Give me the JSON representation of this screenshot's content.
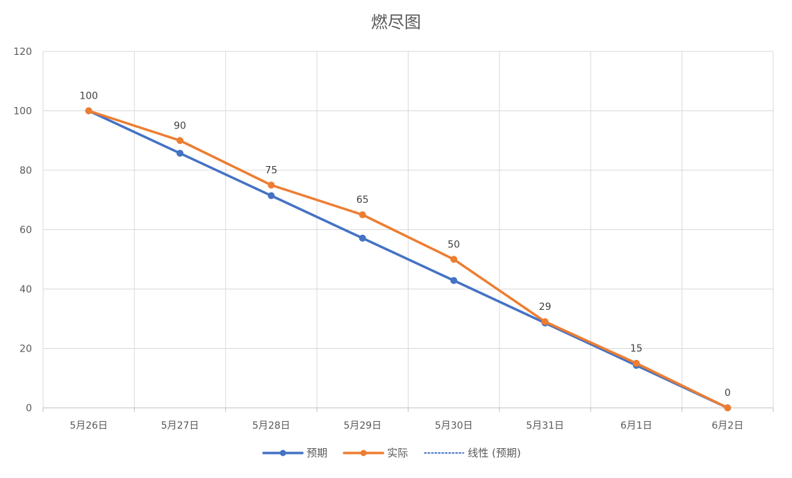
{
  "chart_data": {
    "type": "line",
    "title": "燃尽图",
    "xlabel": "",
    "ylabel": "",
    "categories": [
      "5月26日",
      "5月27日",
      "5月28日",
      "5月29日",
      "5月30日",
      "5月31日",
      "6月1日",
      "6月2日"
    ],
    "ylim": [
      0,
      120
    ],
    "yticks": [
      0,
      20,
      40,
      60,
      80,
      100,
      120
    ],
    "grid": true,
    "legend_position": "bottom",
    "series": [
      {
        "name": "预期",
        "values": [
          100,
          85.71,
          71.43,
          57.14,
          42.86,
          28.57,
          14.29,
          0
        ],
        "color": "#4472C4",
        "style": "solid-with-markers",
        "show_labels": false
      },
      {
        "name": "实际",
        "values": [
          100,
          90,
          75,
          65,
          50,
          29,
          15,
          0
        ],
        "color": "#ED7D31",
        "style": "solid-with-markers",
        "show_labels": true
      }
    ],
    "trendline": {
      "name": "线性 (预期)",
      "of_series": "预期",
      "type": "linear",
      "color": "#4472C4",
      "style": "dotted"
    }
  }
}
